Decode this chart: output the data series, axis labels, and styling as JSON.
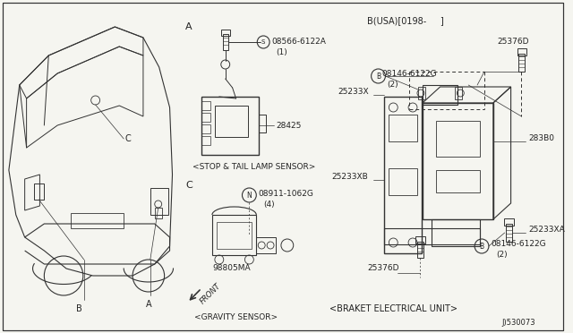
{
  "bg_color": "#f5f5f0",
  "line_color": "#333333",
  "text_color": "#222222",
  "fig_width": 6.4,
  "fig_height": 3.72,
  "dpi": 100,
  "border_lw": 0.8,
  "diagram_number": "J)530073",
  "section_b_label": "B(USA)[0198-     ]",
  "stop_tail_label": "<STOP & TAIL LAMP SENSOR>",
  "gravity_sensor_label": "<GRAVITY SENSOR>",
  "braket_label": "<BRAKET ELECTRICAL UNIT>"
}
